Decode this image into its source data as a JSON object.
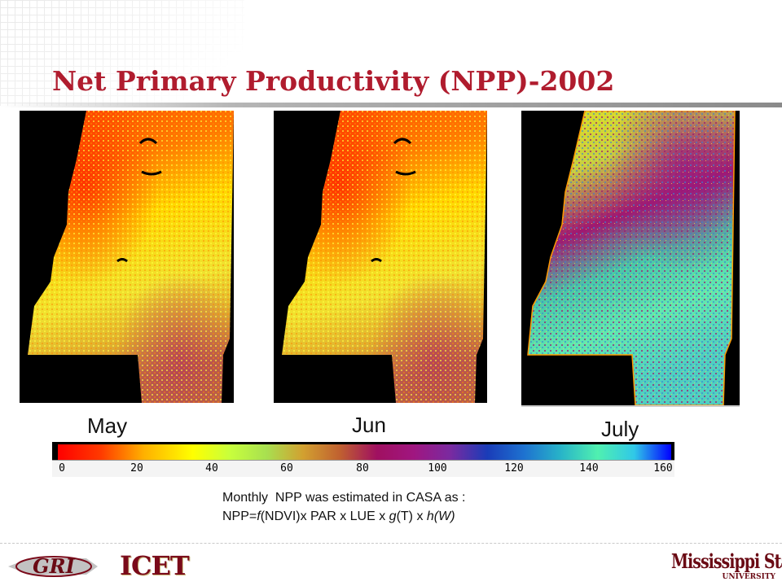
{
  "slide": {
    "title": "Net Primary Productivity (NPP)-2002"
  },
  "maps": [
    {
      "label": "May"
    },
    {
      "label": "Jun"
    },
    {
      "label": "July"
    }
  ],
  "legend": {
    "ticks": [
      "0",
      "20",
      "40",
      "60",
      "80",
      "100",
      "120",
      "140",
      "160"
    ],
    "colors": [
      "#ff0000",
      "#ffff00",
      "#a01060",
      "#1e72d0",
      "#50f0b0",
      "#0000ff"
    ]
  },
  "note": {
    "line1": "Monthly  NPP was estimated in CASA as :",
    "line2_prefix": "NPP=",
    "line2_f": "f",
    "line2_mid": "(NDVI)x PAR x LUE x ",
    "line2_g": "g",
    "line2_rest": "(T) x ",
    "line2_h": "h(W)"
  },
  "logos": {
    "gri": "GRI",
    "icet": "ICET",
    "msu": "Mississippi State",
    "msu_sub": "UNIVERSITY"
  },
  "colors": {
    "title": "#b01c2e",
    "map_background": "#000000"
  }
}
